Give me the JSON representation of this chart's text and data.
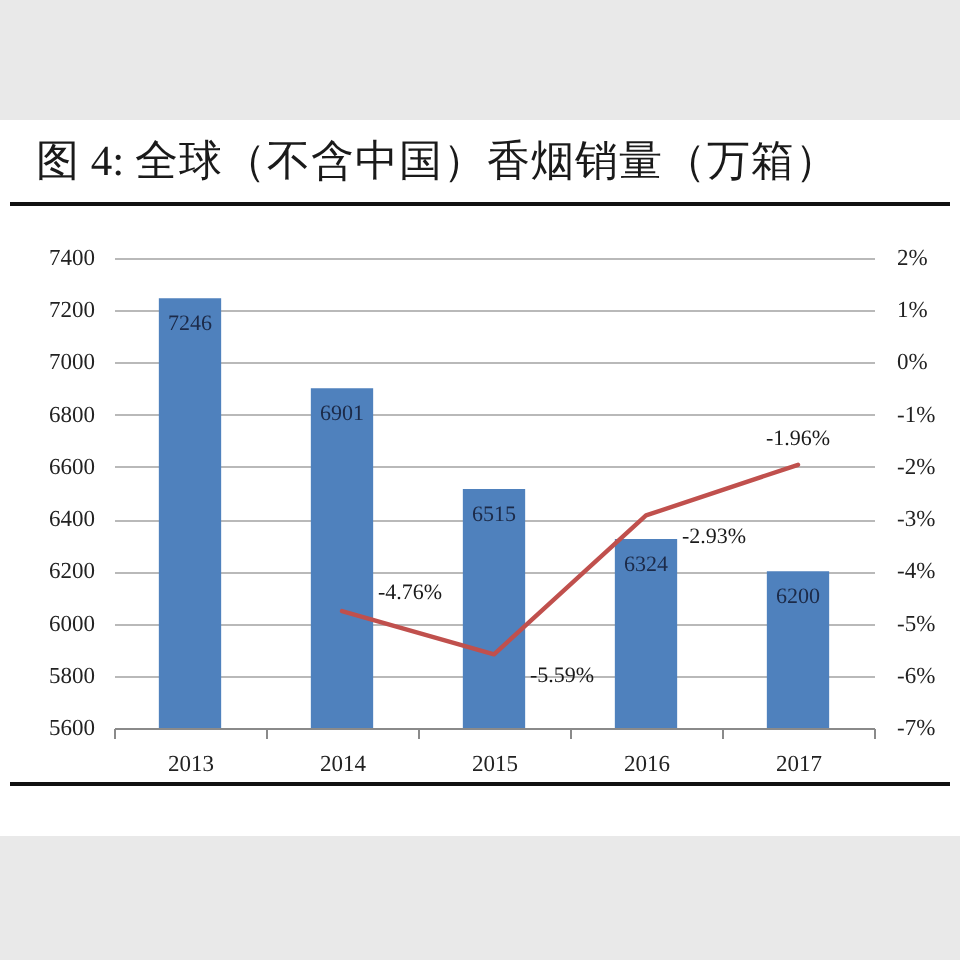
{
  "chart_data": {
    "type": "bar",
    "title": "图 4: 全球（不含中国）香烟销量（万箱）",
    "categories": [
      "2013",
      "2014",
      "2015",
      "2016",
      "2017"
    ],
    "series": [
      {
        "color": "#4f81bd",
        "values": [
          7246,
          6901,
          6515,
          6324,
          6200
        ],
        "value_labels": [
          "7246",
          "6901",
          "6515",
          "6324",
          "6200"
        ]
      },
      {
        "type": "line",
        "axis": "y2",
        "color": "#c0504d",
        "values": [
          null,
          -4.76,
          -5.59,
          -2.93,
          -1.96
        ],
        "value_labels": [
          null,
          "-4.76%",
          "-5.59%",
          "-2.93%",
          "-1.96%"
        ]
      }
    ],
    "ylim": [
      5600,
      7400
    ],
    "yticks": [
      5600,
      5800,
      6000,
      6200,
      6400,
      6600,
      6800,
      7000,
      7200,
      7400
    ],
    "y2lim": [
      -7,
      2
    ],
    "y2ticks": [
      {
        "value": -7,
        "label": "-7%"
      },
      {
        "value": -6,
        "label": "-6%"
      },
      {
        "value": -5,
        "label": "-5%"
      },
      {
        "value": -4,
        "label": "-4%"
      },
      {
        "value": -3,
        "label": "-3%"
      },
      {
        "value": -2,
        "label": "-2%"
      },
      {
        "value": -1,
        "label": "-1%"
      },
      {
        "value": 0,
        "label": "0%"
      },
      {
        "value": 1,
        "label": "1%"
      },
      {
        "value": 2,
        "label": "2%"
      }
    ],
    "grid": "y"
  }
}
